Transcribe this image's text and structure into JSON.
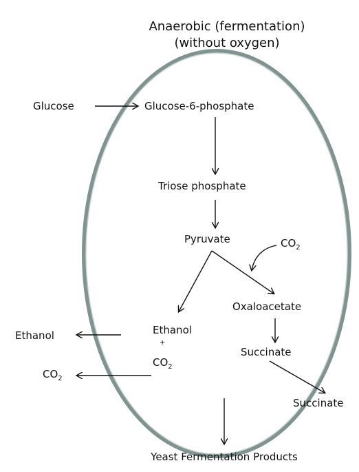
{
  "title": {
    "line1": "Anaerobic (fermentation)",
    "line2": "(without oxygen)"
  },
  "nodes": {
    "glucose": "Glucose",
    "glucose6p": "Glucose-6-phosphate",
    "triose": "Triose phosphate",
    "pyruvate": "Pyruvate",
    "co2_in": "CO",
    "co2_in_sub": "2",
    "oxaloacetate": "Oxaloacetate",
    "ethanol_inside": "Ethanol",
    "plus": "+",
    "co2_inside": "CO",
    "co2_inside_sub": "2",
    "succinate_inside": "Succinate",
    "ethanol_out": "Ethanol",
    "co2_out": "CO",
    "co2_out_sub": "2",
    "succinate_out": "Succinate"
  },
  "footer": "Yeast Fermentation Products",
  "colors": {
    "cell_outer": "#7f9390",
    "cell_inner": "#c9d3d1",
    "ink": "#111111"
  }
}
